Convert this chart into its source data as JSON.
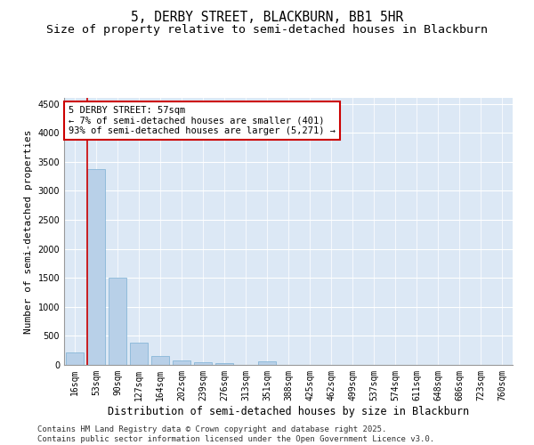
{
  "title": "5, DERBY STREET, BLACKBURN, BB1 5HR",
  "subtitle": "Size of property relative to semi-detached houses in Blackburn",
  "xlabel": "Distribution of semi-detached houses by size in Blackburn",
  "ylabel": "Number of semi-detached properties",
  "categories": [
    "16sqm",
    "53sqm",
    "90sqm",
    "127sqm",
    "164sqm",
    "202sqm",
    "239sqm",
    "276sqm",
    "313sqm",
    "351sqm",
    "388sqm",
    "425sqm",
    "462sqm",
    "499sqm",
    "537sqm",
    "574sqm",
    "611sqm",
    "648sqm",
    "686sqm",
    "723sqm",
    "760sqm"
  ],
  "values": [
    215,
    3370,
    1510,
    390,
    150,
    75,
    45,
    30,
    0,
    60,
    0,
    0,
    0,
    0,
    0,
    0,
    0,
    0,
    0,
    0,
    0
  ],
  "bar_color": "#b8d0e8",
  "bar_edge_color": "#7aafd4",
  "vline_x_bar_index": 1,
  "annotation_line1": "5 DERBY STREET: 57sqm",
  "annotation_line2": "← 7% of semi-detached houses are smaller (401)",
  "annotation_line3": "93% of semi-detached houses are larger (5,271) →",
  "annotation_box_color": "#ffffff",
  "annotation_box_edge_color": "#cc0000",
  "vline_color": "#cc0000",
  "ylim": [
    0,
    4600
  ],
  "yticks": [
    0,
    500,
    1000,
    1500,
    2000,
    2500,
    3000,
    3500,
    4000,
    4500
  ],
  "bg_color": "#dce8f5",
  "footer_line1": "Contains HM Land Registry data © Crown copyright and database right 2025.",
  "footer_line2": "Contains public sector information licensed under the Open Government Licence v3.0.",
  "title_fontsize": 10.5,
  "subtitle_fontsize": 9.5,
  "tick_fontsize": 7,
  "ylabel_fontsize": 8,
  "xlabel_fontsize": 8.5,
  "annotation_fontsize": 7.5,
  "footer_fontsize": 6.5
}
